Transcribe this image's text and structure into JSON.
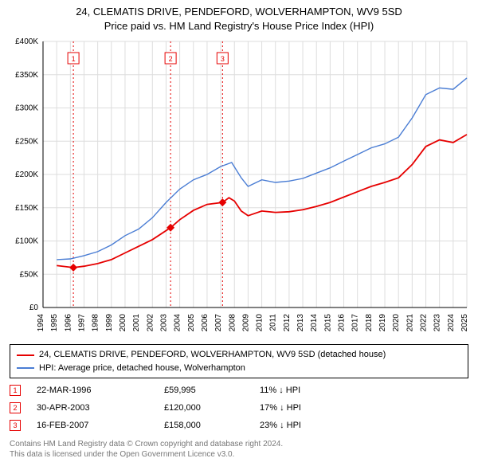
{
  "title_line1": "24, CLEMATIS DRIVE, PENDEFORD, WOLVERHAMPTON, WV9 5SD",
  "title_line2": "Price paid vs. HM Land Registry's House Price Index (HPI)",
  "chart": {
    "type": "line",
    "background_color": "#ffffff",
    "grid_color": "#dddddd",
    "axis_color": "#000000",
    "x": {
      "min": 1994,
      "max": 2025,
      "tick_step": 1,
      "labels_rotated_deg": -90
    },
    "y": {
      "min": 0,
      "max": 400000,
      "tick_step": 50000,
      "label_prefix": "£",
      "ticks": [
        {
          "v": 0,
          "label": "£0"
        },
        {
          "v": 50000,
          "label": "£50K"
        },
        {
          "v": 100000,
          "label": "£100K"
        },
        {
          "v": 150000,
          "label": "£150K"
        },
        {
          "v": 200000,
          "label": "£200K"
        },
        {
          "v": 250000,
          "label": "£250K"
        },
        {
          "v": 300000,
          "label": "£300K"
        },
        {
          "v": 350000,
          "label": "£350K"
        },
        {
          "v": 400000,
          "label": "£400K"
        }
      ]
    },
    "series": [
      {
        "name": "property",
        "color": "#e60000",
        "line_width": 1.8,
        "points": [
          [
            1995.0,
            63000
          ],
          [
            1996.22,
            59995
          ],
          [
            1997,
            62000
          ],
          [
            1998,
            66000
          ],
          [
            1999,
            72000
          ],
          [
            2000,
            82000
          ],
          [
            2001,
            92000
          ],
          [
            2002,
            102000
          ],
          [
            2003.33,
            120000
          ],
          [
            2004,
            132000
          ],
          [
            2005,
            146000
          ],
          [
            2006,
            155000
          ],
          [
            2007.13,
            158000
          ],
          [
            2007.6,
            165000
          ],
          [
            2008,
            160000
          ],
          [
            2008.5,
            145000
          ],
          [
            2009,
            138000
          ],
          [
            2010,
            145000
          ],
          [
            2011,
            143000
          ],
          [
            2012,
            144000
          ],
          [
            2013,
            147000
          ],
          [
            2014,
            152000
          ],
          [
            2015,
            158000
          ],
          [
            2016,
            166000
          ],
          [
            2017,
            174000
          ],
          [
            2018,
            182000
          ],
          [
            2019,
            188000
          ],
          [
            2020,
            195000
          ],
          [
            2021,
            215000
          ],
          [
            2022,
            242000
          ],
          [
            2023,
            252000
          ],
          [
            2024,
            248000
          ],
          [
            2025,
            260000
          ]
        ]
      },
      {
        "name": "hpi",
        "color": "#4a7dd4",
        "line_width": 1.4,
        "points": [
          [
            1995.0,
            72000
          ],
          [
            1996,
            73000
          ],
          [
            1997,
            78000
          ],
          [
            1998,
            84000
          ],
          [
            1999,
            94000
          ],
          [
            2000,
            108000
          ],
          [
            2001,
            118000
          ],
          [
            2002,
            135000
          ],
          [
            2003,
            158000
          ],
          [
            2004,
            178000
          ],
          [
            2005,
            192000
          ],
          [
            2006,
            200000
          ],
          [
            2007,
            212000
          ],
          [
            2007.8,
            218000
          ],
          [
            2008.5,
            195000
          ],
          [
            2009,
            182000
          ],
          [
            2010,
            192000
          ],
          [
            2011,
            188000
          ],
          [
            2012,
            190000
          ],
          [
            2013,
            194000
          ],
          [
            2014,
            202000
          ],
          [
            2015,
            210000
          ],
          [
            2016,
            220000
          ],
          [
            2017,
            230000
          ],
          [
            2018,
            240000
          ],
          [
            2019,
            246000
          ],
          [
            2020,
            256000
          ],
          [
            2021,
            285000
          ],
          [
            2022,
            320000
          ],
          [
            2023,
            330000
          ],
          [
            2024,
            328000
          ],
          [
            2025,
            345000
          ]
        ]
      }
    ],
    "sale_markers": [
      {
        "n": "1",
        "year": 1996.22,
        "price": 59995,
        "color": "#e60000"
      },
      {
        "n": "2",
        "year": 2003.33,
        "price": 120000,
        "color": "#e60000"
      },
      {
        "n": "3",
        "year": 2007.13,
        "price": 158000,
        "color": "#e60000"
      }
    ]
  },
  "legend": {
    "items": [
      {
        "color": "#e60000",
        "label": "24, CLEMATIS DRIVE, PENDEFORD, WOLVERHAMPTON, WV9 5SD (detached house)"
      },
      {
        "color": "#4a7dd4",
        "label": "HPI: Average price, detached house, Wolverhampton"
      }
    ]
  },
  "sales": [
    {
      "n": "1",
      "date": "22-MAR-1996",
      "price": "£59,995",
      "delta": "11% ↓ HPI",
      "color": "#e60000"
    },
    {
      "n": "2",
      "date": "30-APR-2003",
      "price": "£120,000",
      "delta": "17% ↓ HPI",
      "color": "#e60000"
    },
    {
      "n": "3",
      "date": "16-FEB-2007",
      "price": "£158,000",
      "delta": "23% ↓ HPI",
      "color": "#e60000"
    }
  ],
  "footnote_line1": "Contains HM Land Registry data © Crown copyright and database right 2024.",
  "footnote_line2": "This data is licensed under the Open Government Licence v3.0."
}
